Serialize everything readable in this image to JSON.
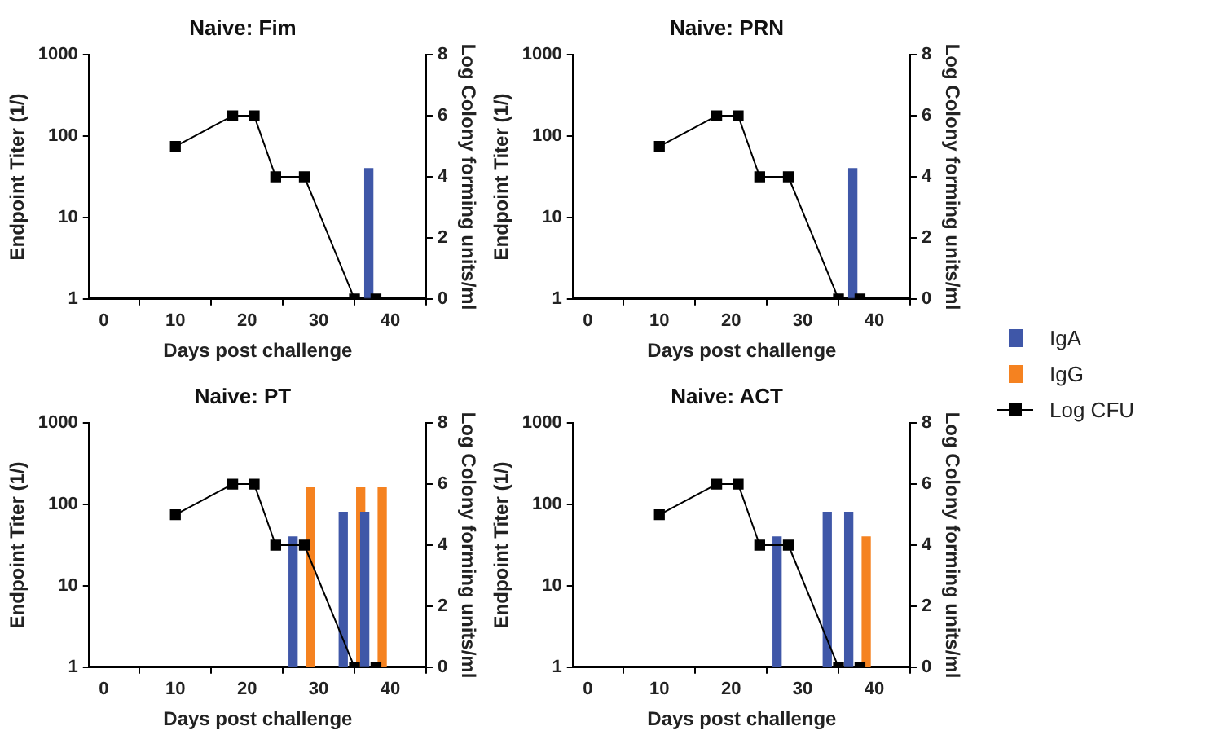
{
  "chart_data": [
    {
      "type": "bar",
      "title": "Naive: Fim",
      "xlabel": "Days post challenge",
      "ylabel": "Endpoint Titer (1/)",
      "y2label": "Log Colony forming units/ml",
      "xlim": [
        -2,
        45
      ],
      "xticks": [
        0,
        10,
        20,
        30,
        40
      ],
      "ylim": [
        1,
        1000
      ],
      "yticks": [
        1,
        10,
        100,
        1000
      ],
      "y2lim": [
        0,
        8
      ],
      "y2ticks": [
        0,
        2,
        4,
        6,
        8
      ],
      "log": "y",
      "grid": false,
      "legend": "right",
      "marker": "square",
      "series": [
        {
          "name": "IgA",
          "color": "#3f57a8",
          "x": [
            37
          ],
          "values": [
            40
          ]
        },
        {
          "name": "Log CFU",
          "type": "line",
          "axis": "y2",
          "color": "#000000",
          "x": [
            10,
            18,
            21,
            24,
            28,
            35,
            38
          ],
          "values": [
            5,
            6,
            6,
            4,
            4,
            0,
            0
          ]
        }
      ]
    },
    {
      "type": "bar",
      "title": "Naive: PRN",
      "xlabel": "Days post challenge",
      "ylabel": "Endpoint Titer (1/)",
      "y2label": "Log Colony forming units/ml",
      "xlim": [
        -2,
        45
      ],
      "xticks": [
        0,
        10,
        20,
        30,
        40
      ],
      "ylim": [
        1,
        1000
      ],
      "yticks": [
        1,
        10,
        100,
        1000
      ],
      "y2lim": [
        0,
        8
      ],
      "y2ticks": [
        0,
        2,
        4,
        6,
        8
      ],
      "log": "y",
      "grid": false,
      "legend": "right",
      "marker": "square",
      "series": [
        {
          "name": "IgA",
          "color": "#3f57a8",
          "x": [
            37
          ],
          "values": [
            40
          ]
        },
        {
          "name": "Log CFU",
          "type": "line",
          "axis": "y2",
          "color": "#000000",
          "x": [
            10,
            18,
            21,
            24,
            28,
            35,
            38
          ],
          "values": [
            5,
            6,
            6,
            4,
            4,
            0,
            0
          ]
        }
      ]
    },
    {
      "type": "bar",
      "title": "Naive: PT",
      "xlabel": "Days post challenge",
      "ylabel": "Endpoint Titer (1/)",
      "y2label": "Log Colony forming units/ml",
      "xlim": [
        -2,
        45
      ],
      "xticks": [
        0,
        10,
        20,
        30,
        40
      ],
      "ylim": [
        1,
        1000
      ],
      "yticks": [
        1,
        10,
        100,
        1000
      ],
      "y2lim": [
        0,
        8
      ],
      "y2ticks": [
        0,
        2,
        4,
        6,
        8
      ],
      "log": "y",
      "grid": false,
      "legend": "right",
      "marker": "square",
      "series": [
        {
          "name": "IgA",
          "color": "#3f57a8",
          "x": [
            27,
            34,
            37
          ],
          "values": [
            40,
            80,
            80
          ]
        },
        {
          "name": "IgG",
          "color": "#f58220",
          "x": [
            28.3,
            35.3,
            38.3
          ],
          "values": [
            160,
            160,
            160
          ]
        },
        {
          "name": "Log CFU",
          "type": "line",
          "axis": "y2",
          "color": "#000000",
          "x": [
            10,
            18,
            21,
            24,
            28,
            35,
            38
          ],
          "values": [
            5,
            6,
            6,
            4,
            4,
            0,
            0
          ]
        }
      ]
    },
    {
      "type": "bar",
      "title": "Naive: ACT",
      "xlabel": "Days post challenge",
      "ylabel": "Endpoint Titer (1/)",
      "y2label": "Log Colony forming units/ml",
      "xlim": [
        -2,
        45
      ],
      "xticks": [
        0,
        10,
        20,
        30,
        40
      ],
      "ylim": [
        1,
        1000
      ],
      "yticks": [
        1,
        10,
        100,
        1000
      ],
      "y2lim": [
        0,
        8
      ],
      "y2ticks": [
        0,
        2,
        4,
        6,
        8
      ],
      "log": "y",
      "grid": false,
      "legend": "right",
      "marker": "square",
      "series": [
        {
          "name": "IgA",
          "color": "#3f57a8",
          "x": [
            27,
            34,
            37
          ],
          "values": [
            40,
            80,
            80
          ]
        },
        {
          "name": "IgG",
          "color": "#f58220",
          "x": [
            38.3
          ],
          "values": [
            40
          ]
        },
        {
          "name": "Log CFU",
          "type": "line",
          "axis": "y2",
          "color": "#000000",
          "x": [
            10,
            18,
            21,
            24,
            28,
            35,
            38
          ],
          "values": [
            5,
            6,
            6,
            4,
            4,
            0,
            0
          ]
        }
      ]
    }
  ]
}
